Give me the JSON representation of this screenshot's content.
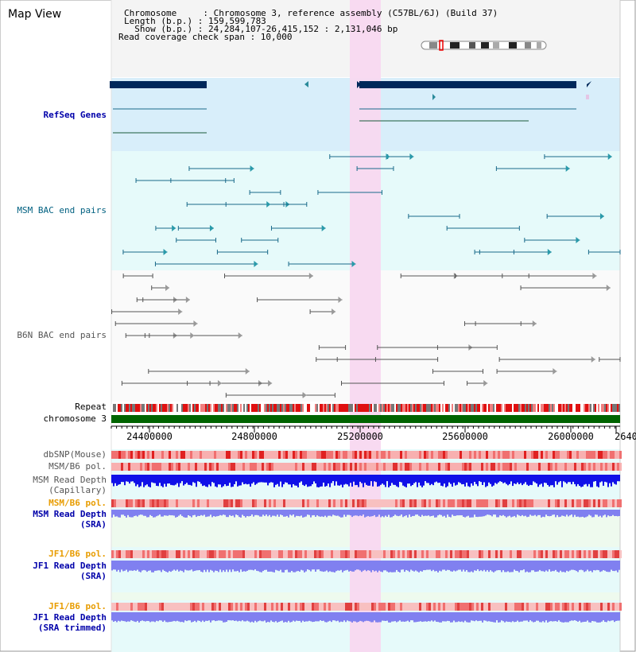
{
  "title": "Map View",
  "header": {
    "line1": "Chromosome     : Chromosome 3, reference assembly (C57BL/6J) (Build 37)",
    "line2": "Length (b.p.) : 159,599,783",
    "line3": "  Show (b.p.) : 24,284,107-26,415,152 : 2,131,046 bp",
    "line4": "Read coverage check span : 10,000"
  },
  "tracks": {
    "refseq": "RefSeq Genes",
    "msm_bac": "MSM BAC end pairs",
    "b6n_bac": "B6N BAC end pairs",
    "repeat": "Repeat",
    "chromosome": "chromosome 3",
    "dbsnp": "dbSNP(Mouse)",
    "msm_b6_pol_1": "MSM/B6 pol.",
    "msm_depth_cap_1": "MSM Read Depth",
    "msm_depth_cap_2": "(Capillary)",
    "msm_b6_pol_2": "MSM/B6 pol.",
    "msm_depth_sra_1": "MSM Read Depth",
    "msm_depth_sra_2": "(SRA)",
    "jf1_b6_pol_1": "JF1/B6 pol.",
    "jf1_depth_sra_1": "JF1 Read Depth",
    "jf1_depth_sra_2": "(SRA)",
    "jf1_b6_pol_2": "JF1/B6 pol.",
    "jf1_depth_trim_1": "JF1 Read Depth",
    "jf1_depth_trim_2": "(SRA trimmed)"
  },
  "axis_ticks": [
    "24400000",
    "24800000",
    "25200000",
    "25600000",
    "26000000",
    "2640"
  ],
  "colors": {
    "highlight": "#f8d8f0",
    "refseq_bg": "#d8eefa",
    "msm_bg": "#e6fafa",
    "gene_bar": "#00285a",
    "chromosome": "#006400",
    "depth_blue": "#1010e8",
    "depth_lavender": "#8080f0"
  }
}
